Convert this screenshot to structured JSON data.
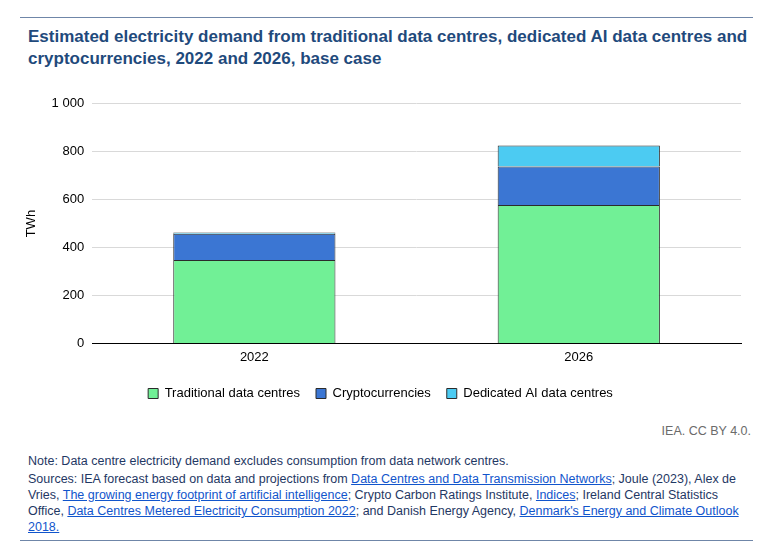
{
  "chart_data": {
    "type": "bar",
    "title": "Estimated electricity demand from traditional data centres, dedicated AI data centres and cryptocurrencies, 2022 and 2026, base case",
    "y_label": "TWh",
    "categories": [
      "2022",
      "2026"
    ],
    "series": [
      {
        "name": "Traditional data centres",
        "color": "#71f096",
        "values": [
          348,
          578
        ]
      },
      {
        "name": "Cryptocurrencies",
        "color": "#3b76d3",
        "values": [
          110,
          160
        ]
      },
      {
        "name": "Dedicated AI data centres",
        "color": "#4ccbf2",
        "values": [
          5,
          88
        ]
      }
    ],
    "stacked": true,
    "ylim": [
      0,
      1000
    ],
    "yticks": [
      0,
      200,
      400,
      600,
      800,
      {
        "value": 1000,
        "label": "1 000"
      }
    ],
    "grid": true,
    "legend": "bottom",
    "credit": "IEA. CC BY 4.0.",
    "note": "Note: Data centre electricity demand excludes consumption from data network centres.",
    "sources": [
      "Sources: IEA forecast based on data and projections from ",
      "Data Centres and Data Transmission Networks",
      "; Joule (2023), Alex de Vries, ",
      "The growing energy footprint of artificial intelligence",
      "; Crypto Carbon Ratings Institute, ",
      "Indices",
      "; Ireland Central Statistics Office, ",
      "Data Centres Metered Electricity Consumption 2022",
      "; and Danish Energy Agency, ",
      "Denmark's Energy and Climate Outlook 2018."
    ]
  }
}
